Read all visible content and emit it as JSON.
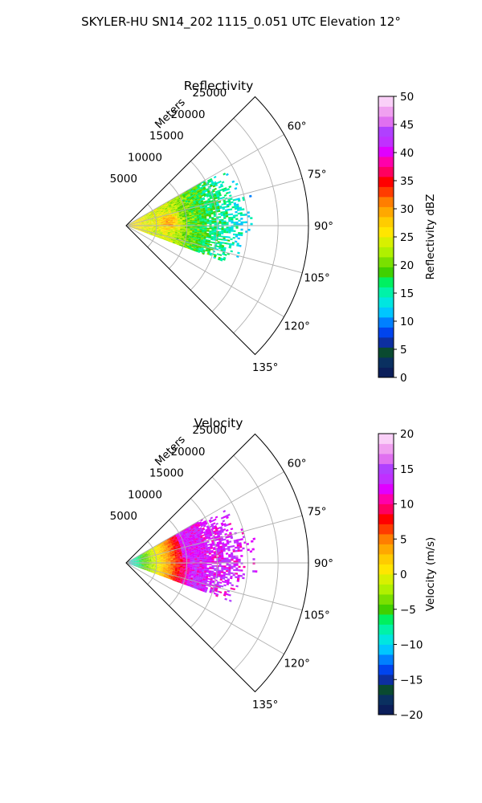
{
  "suptitle": "SKYLER-HU  SN14_202  1115_0.051 UTC Elevation 12°",
  "chart_data": [
    {
      "type": "heatmap",
      "projection": "polar sector",
      "title": "Reflectivity",
      "radial_label": "Meters",
      "radial_ticks": [
        "5000",
        "10000",
        "15000",
        "20000",
        "25000"
      ],
      "radial_tick_values": [
        5000,
        10000,
        15000,
        20000,
        25000
      ],
      "rlim": [
        0,
        30000
      ],
      "angle_ticks": [
        "60°",
        "75°",
        "90°",
        "105°",
        "120°",
        "135°"
      ],
      "angle_tick_values": [
        60,
        75,
        90,
        105,
        120,
        135
      ],
      "azimuth_range_deg": [
        45,
        135
      ],
      "grid": true,
      "data_extent": {
        "azimuth_deg": [
          60,
          110
        ],
        "range_m": [
          0,
          20000
        ]
      },
      "pattern": "values near 25-30 dBZ close to the radar with 30-37 dBZ cores near 5-10 km, decreasing to 15-20 dBZ at the outer edge",
      "colorbar": {
        "label": "Reflectivity dBZ",
        "range": [
          0,
          50
        ],
        "ticks": [
          "0",
          "5",
          "10",
          "15",
          "20",
          "25",
          "30",
          "35",
          "40",
          "45",
          "50"
        ],
        "colors": [
          "#0b1e5a",
          "#0a3060",
          "#0a4a30",
          "#0d2fa0",
          "#0044ee",
          "#0080ff",
          "#00c6ff",
          "#00e6e0",
          "#00f2a8",
          "#00f060",
          "#40d000",
          "#7ae000",
          "#b0f000",
          "#d8f000",
          "#ffe600",
          "#ffcc00",
          "#ffa800",
          "#ff7e00",
          "#ff3c00",
          "#ff0000",
          "#ff0060",
          "#ff00aa",
          "#e000ff",
          "#c030ff",
          "#b040ff",
          "#e070f0",
          "#f0a0f0",
          "#fad0f8"
        ]
      }
    },
    {
      "type": "heatmap",
      "projection": "polar sector",
      "title": "Velocity",
      "radial_label": "Meters",
      "radial_ticks": [
        "5000",
        "10000",
        "15000",
        "20000",
        "25000"
      ],
      "radial_tick_values": [
        5000,
        10000,
        15000,
        20000,
        25000
      ],
      "rlim": [
        0,
        30000
      ],
      "angle_ticks": [
        "60°",
        "75°",
        "90°",
        "105°",
        "120°",
        "135°"
      ],
      "angle_tick_values": [
        60,
        75,
        90,
        105,
        120,
        135
      ],
      "azimuth_range_deg": [
        45,
        135
      ],
      "grid": true,
      "data_extent": {
        "azimuth_deg": [
          60,
          110
        ],
        "range_m": [
          0,
          20000
        ]
      },
      "pattern": "velocities near -10 m/s at the radar rising through 0 m/s around 4-6 km to 10-15 m/s beyond 8 km",
      "colorbar": {
        "label": "Velocity (m/s)",
        "range": [
          -20,
          20
        ],
        "ticks": [
          "−20",
          "−15",
          "−10",
          "−5",
          "0",
          "5",
          "10",
          "15",
          "20"
        ],
        "colors": [
          "#0b1e5a",
          "#0a3060",
          "#0a4a30",
          "#0d2fa0",
          "#0044ee",
          "#0080ff",
          "#00c6ff",
          "#00e6e0",
          "#00f2a8",
          "#00f060",
          "#40d000",
          "#7ae000",
          "#b0f000",
          "#d8f000",
          "#ffe600",
          "#ffcc00",
          "#ffa800",
          "#ff7e00",
          "#ff3c00",
          "#ff0000",
          "#ff0060",
          "#ff00aa",
          "#e000ff",
          "#c030ff",
          "#b040ff",
          "#e070f0",
          "#f0a0f0",
          "#fad0f8"
        ]
      }
    }
  ]
}
